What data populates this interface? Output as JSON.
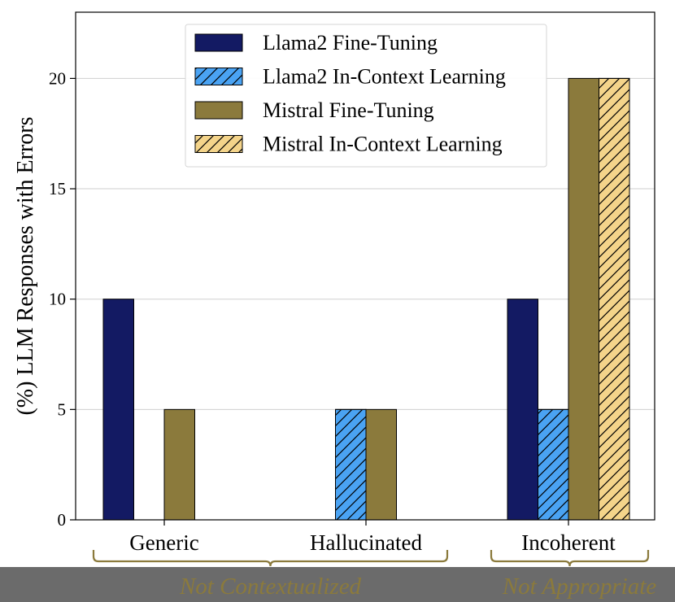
{
  "chart_data": {
    "type": "bar",
    "ylabel": "(%) LLM Responses with Errors",
    "categories": [
      "Generic",
      "Hallucinated",
      "Incoherent"
    ],
    "ylim": [
      0,
      23
    ],
    "yticks": [
      0,
      5,
      10,
      15,
      20
    ],
    "grid": "y",
    "legend_position": "top-center",
    "series": [
      {
        "name": "Llama2 Fine-Tuning",
        "values": [
          10,
          0,
          10
        ],
        "color": "#131a63",
        "hatch": false
      },
      {
        "name": "Llama2 In-Context Learning",
        "values": [
          0,
          5,
          5
        ],
        "color": "#4aa3f3",
        "hatch": true
      },
      {
        "name": "Mistral Fine-Tuning",
        "values": [
          5,
          5,
          20
        ],
        "color": "#8b7a3c",
        "hatch": false
      },
      {
        "name": "Mistral In-Context Learning",
        "values": [
          0,
          0,
          20
        ],
        "color": "#f4d48a",
        "hatch": true
      }
    ],
    "group_annotations": [
      {
        "label": "Not Contextualized",
        "categories": [
          "Generic",
          "Hallucinated"
        ]
      },
      {
        "label": "Not Appropriate",
        "categories": [
          "Incoherent"
        ]
      }
    ],
    "annotation_color": "#8b7a3c"
  }
}
